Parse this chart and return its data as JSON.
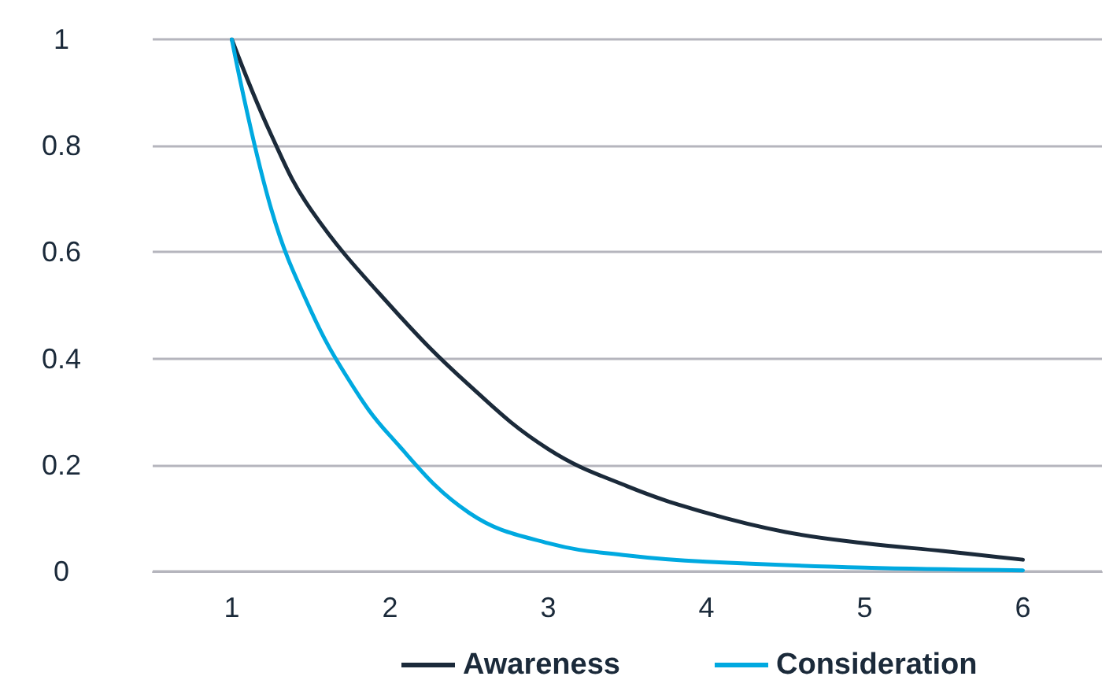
{
  "chart_data": {
    "type": "line",
    "x": [
      1,
      1.25,
      1.5,
      2,
      2.5,
      3,
      3.5,
      4,
      4.5,
      5,
      5.5,
      6
    ],
    "series": [
      {
        "name": "Awareness",
        "color": "#1b2a3a",
        "values": [
          1,
          0.82,
          0.68,
          0.5,
          0.35,
          0.23,
          0.16,
          0.11,
          0.074,
          0.053,
          0.038,
          0.022
        ]
      },
      {
        "name": "Consideration",
        "color": "#00a9e0",
        "x": [
          1,
          1.25,
          1.5,
          1.75,
          2,
          2.5,
          3,
          3.5,
          4,
          5,
          6
        ],
        "values": [
          1,
          0.68,
          0.49,
          0.355,
          0.255,
          0.11,
          0.053,
          0.03,
          0.018,
          0.007,
          0.002
        ]
      }
    ],
    "xlim": [
      0.5,
      6.5
    ],
    "xticks": [
      1,
      2,
      3,
      4,
      5,
      6
    ],
    "ylim": [
      0,
      1
    ],
    "yticks": [
      0,
      0.2,
      0.4,
      0.6,
      0.8,
      1
    ],
    "grid": "y",
    "legend": "bottom",
    "marker": "none",
    "line_style": "solid"
  }
}
